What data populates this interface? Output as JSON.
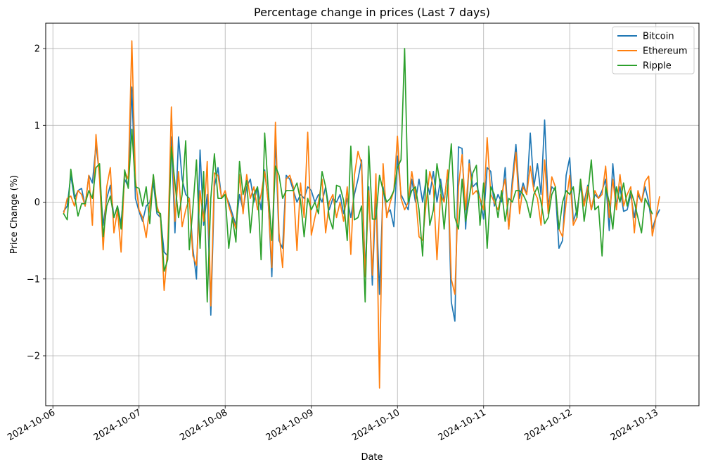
{
  "chart_data": {
    "type": "line",
    "title": "Percentage change in prices (Last 7 days)",
    "xlabel": "Date",
    "ylabel": "Price Change (%)",
    "grid": true,
    "legend_position": "top-right",
    "xlim": [
      "2024-10-05T22:00",
      "2024-10-13T12:00"
    ],
    "ylim": [
      -2.65,
      2.33
    ],
    "x_ticks": [
      "2024-10-06",
      "2024-10-07",
      "2024-10-08",
      "2024-10-09",
      "2024-10-10",
      "2024-10-11",
      "2024-10-12",
      "2024-10-13"
    ],
    "y_ticks": [
      {
        "value": -2,
        "label": "−2"
      },
      {
        "value": -1,
        "label": "−1"
      },
      {
        "value": 0,
        "label": "0"
      },
      {
        "value": 1,
        "label": "1"
      },
      {
        "value": 2,
        "label": "2"
      }
    ],
    "x_start": "2024-10-06T03:00",
    "x_step_hours": 1,
    "series": [
      {
        "name": "Bitcoin",
        "color": "#1f77b4",
        "values": [
          -0.12,
          -0.05,
          0.35,
          0.05,
          0.15,
          0.18,
          -0.05,
          0.35,
          0.25,
          0.75,
          0.35,
          -0.3,
          0.05,
          0.22,
          -0.2,
          -0.05,
          -0.28,
          0.3,
          0.2,
          1.5,
          0.05,
          -0.12,
          -0.25,
          -0.05,
          0.0,
          0.25,
          -0.15,
          -0.2,
          -0.65,
          -0.7,
          0.85,
          -0.4,
          0.85,
          0.3,
          0.1,
          0.05,
          -0.6,
          -1.0,
          0.68,
          -0.3,
          0.1,
          -1.47,
          0.2,
          0.45,
          0.05,
          0.1,
          0.0,
          -0.15,
          -0.3,
          0.1,
          -0.1,
          0.2,
          0.3,
          0.0,
          0.2,
          -0.1,
          0.42,
          0.0,
          -0.97,
          0.85,
          -0.5,
          -0.6,
          0.35,
          0.3,
          0.15,
          0.0,
          0.1,
          0.05,
          0.2,
          0.15,
          0.0,
          0.1,
          0.0,
          0.2,
          -0.1,
          0.05,
          0.0,
          0.1,
          -0.15,
          0.05,
          -0.2,
          0.1,
          0.3,
          0.55,
          -0.9,
          0.2,
          -1.08,
          0.15,
          -1.2,
          0.2,
          -0.15,
          -0.1,
          -0.32,
          0.6,
          0.1,
          0.0,
          -0.1,
          0.3,
          0.0,
          0.3,
          0.0,
          0.3,
          0.1,
          0.4,
          0.0,
          0.3,
          0.0,
          0.4,
          -1.3,
          -1.55,
          0.72,
          0.7,
          -0.35,
          0.55,
          0.2,
          0.25,
          0.05,
          -0.22,
          0.45,
          0.4,
          -0.05,
          0.1,
          0.0,
          0.45,
          -0.35,
          0.3,
          0.75,
          0.05,
          0.25,
          0.1,
          0.9,
          0.2,
          0.5,
          0.1,
          1.07,
          -0.05,
          0.2,
          0.15,
          -0.6,
          -0.5,
          0.35,
          0.58,
          -0.25,
          -0.1,
          0.2,
          0.0,
          0.22,
          -0.1,
          0.1,
          0.05,
          0.15,
          0.3,
          -0.37,
          0.5,
          -0.05,
          0.2,
          -0.12,
          -0.1,
          0.1,
          -0.2,
          0.1,
          0.0,
          0.2,
          0.0,
          -0.35,
          -0.2,
          -0.1
        ]
      },
      {
        "name": "Ethereum",
        "color": "#ff7f0e",
        "values": [
          -0.15,
          0.05,
          0.08,
          -0.05,
          0.15,
          0.1,
          -0.05,
          0.35,
          -0.3,
          0.88,
          0.3,
          -0.62,
          0.2,
          0.45,
          -0.4,
          -0.1,
          -0.65,
          0.4,
          0.3,
          2.1,
          0.3,
          -0.1,
          -0.2,
          -0.46,
          -0.05,
          0.35,
          -0.05,
          -0.2,
          -1.15,
          -0.6,
          1.24,
          -0.25,
          0.4,
          -0.32,
          -0.1,
          0.05,
          -0.7,
          -0.82,
          0.15,
          -0.25,
          0.53,
          -1.35,
          0.38,
          0.35,
          0.05,
          0.15,
          -0.05,
          -0.2,
          -0.35,
          0.36,
          -0.15,
          0.36,
          0.05,
          0.2,
          -0.1,
          0.1,
          0.4,
          0.0,
          -0.85,
          1.04,
          -0.4,
          -0.85,
          0.3,
          0.35,
          0.2,
          -0.63,
          0.25,
          -0.2,
          0.91,
          -0.43,
          -0.2,
          0.0,
          0.3,
          -0.4,
          0.0,
          0.1,
          -0.2,
          0.0,
          -0.25,
          0.2,
          -0.68,
          0.35,
          0.66,
          0.5,
          -0.97,
          0.15,
          -0.95,
          0.37,
          -2.42,
          0.5,
          -0.2,
          0.0,
          0.15,
          0.86,
          0.05,
          -0.1,
          0.0,
          0.4,
          0.1,
          -0.45,
          -0.5,
          0.0,
          0.4,
          0.2,
          -0.75,
          0.1,
          0.0,
          0.42,
          -1.0,
          -1.2,
          0.2,
          0.62,
          -0.1,
          0.5,
          0.1,
          0.15,
          0.05,
          -0.1,
          0.84,
          0.1,
          0.0,
          -0.1,
          0.1,
          0.3,
          -0.35,
          0.2,
          0.65,
          -0.15,
          0.2,
          0.1,
          0.47,
          0.15,
          0.05,
          -0.3,
          0.55,
          -0.15,
          0.33,
          0.2,
          -0.35,
          -0.45,
          0.0,
          0.35,
          -0.3,
          -0.2,
          0.3,
          -0.05,
          0.2,
          -0.1,
          0.15,
          0.05,
          0.1,
          0.47,
          -0.2,
          0.3,
          -0.1,
          0.36,
          -0.05,
          0.1,
          0.2,
          -0.4,
          0.15,
          0.0,
          0.27,
          0.34,
          -0.44,
          -0.2,
          0.07
        ]
      },
      {
        "name": "Ripple",
        "color": "#2ca02c",
        "values": [
          -0.15,
          -0.23,
          0.43,
          0.1,
          -0.18,
          -0.02,
          -0.02,
          0.15,
          0.05,
          0.45,
          0.5,
          -0.45,
          -0.05,
          0.08,
          -0.2,
          -0.05,
          -0.35,
          0.42,
          0.18,
          0.95,
          0.2,
          0.18,
          -0.05,
          0.2,
          -0.28,
          0.36,
          -0.12,
          -0.15,
          -0.9,
          -0.75,
          0.72,
          0.25,
          -0.2,
          0.1,
          0.8,
          -0.62,
          -0.08,
          0.55,
          -0.6,
          0.4,
          -1.3,
          0.05,
          0.63,
          0.05,
          0.05,
          0.1,
          -0.6,
          -0.2,
          -0.52,
          0.53,
          0.1,
          0.28,
          -0.4,
          0.1,
          0.2,
          -0.75,
          0.9,
          0.15,
          -0.5,
          0.47,
          0.35,
          0.05,
          0.15,
          0.15,
          0.15,
          0.25,
          0.02,
          -0.45,
          0.05,
          -0.1,
          0.0,
          -0.15,
          0.4,
          0.2,
          -0.2,
          -0.35,
          0.22,
          0.2,
          0.02,
          -0.5,
          0.73,
          -0.23,
          -0.2,
          -0.05,
          -1.3,
          0.73,
          -0.22,
          -0.22,
          0.35,
          0.15,
          0.0,
          0.05,
          0.15,
          0.45,
          0.55,
          2.0,
          0.0,
          0.15,
          0.2,
          -0.1,
          -0.7,
          0.42,
          -0.3,
          -0.1,
          0.5,
          0.2,
          -0.35,
          0.2,
          0.76,
          -0.2,
          -0.35,
          0.3,
          -0.25,
          0.05,
          0.38,
          0.48,
          -0.3,
          0.25,
          -0.6,
          0.2,
          0.1,
          -0.2,
          0.15,
          -0.25,
          0.05,
          0.0,
          0.15,
          0.15,
          0.1,
          0.0,
          -0.2,
          0.1,
          0.2,
          0.0,
          -0.28,
          -0.2,
          0.1,
          0.2,
          -0.35,
          0.0,
          0.15,
          0.1,
          0.2,
          -0.2,
          0.3,
          -0.25,
          0.1,
          0.55,
          -0.1,
          -0.05,
          -0.7,
          0.2,
          0.0,
          -0.35,
          0.2,
          0.0,
          0.25,
          -0.05,
          0.15,
          0.0,
          -0.2,
          -0.4,
          0.05,
          -0.05,
          -0.15
        ]
      }
    ]
  }
}
